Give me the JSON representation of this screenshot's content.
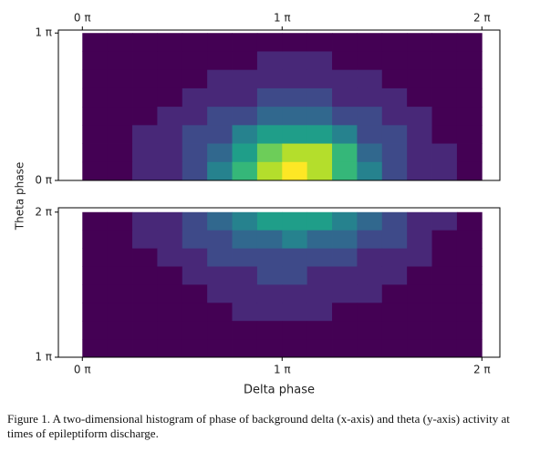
{
  "chart_data": [
    {
      "type": "hexbin",
      "colormap": "viridis",
      "xlim": [
        -0.12,
        2.09
      ],
      "ylim": [
        0,
        1.02
      ],
      "xticks": [
        {
          "value": 0,
          "label": "0 π"
        },
        {
          "value": 1,
          "label": "1 π"
        },
        {
          "value": 2,
          "label": "2 π"
        }
      ],
      "yticks": [
        {
          "value": 0,
          "label": "0 π"
        },
        {
          "value": 1,
          "label": "1 π"
        }
      ],
      "xtick_side": "top",
      "z": [
        [
          1,
          1,
          1,
          1,
          1,
          1,
          1,
          1,
          1,
          1,
          1,
          1,
          1,
          1,
          1,
          1
        ],
        [
          1,
          1,
          1,
          1,
          1,
          1,
          1,
          2,
          2,
          2,
          1,
          1,
          1,
          1,
          1,
          1
        ],
        [
          1,
          1,
          1,
          1,
          1,
          2,
          2,
          2,
          2,
          2,
          2,
          2,
          1,
          1,
          1,
          1
        ],
        [
          1,
          1,
          1,
          1,
          2,
          2,
          2,
          3,
          3,
          3,
          2,
          2,
          2,
          1,
          1,
          1
        ],
        [
          1,
          1,
          1,
          2,
          2,
          3,
          3,
          4,
          4,
          4,
          3,
          3,
          2,
          2,
          1,
          1
        ],
        [
          1,
          1,
          2,
          2,
          3,
          3,
          5,
          6,
          6,
          6,
          5,
          3,
          3,
          2,
          1,
          1
        ],
        [
          1,
          1,
          2,
          2,
          3,
          4,
          6,
          8,
          9,
          9,
          7,
          4,
          3,
          2,
          2,
          1
        ],
        [
          1,
          1,
          2,
          2,
          3,
          5,
          7,
          9,
          10,
          9,
          7,
          5,
          3,
          2,
          2,
          1
        ]
      ]
    },
    {
      "type": "hexbin",
      "colormap": "viridis",
      "xlim": [
        -0.12,
        2.09
      ],
      "ylim": [
        1,
        2.03
      ],
      "xticks": [
        {
          "value": 0,
          "label": "0 π"
        },
        {
          "value": 1,
          "label": "1 π"
        },
        {
          "value": 2,
          "label": "2 π"
        }
      ],
      "yticks": [
        {
          "value": 1,
          "label": "1 π"
        },
        {
          "value": 2,
          "label": "2 π"
        }
      ],
      "xtick_side": "bottom",
      "xlabel": "Delta phase",
      "z": [
        [
          1,
          1,
          2,
          2,
          3,
          4,
          5,
          6,
          6,
          6,
          5,
          4,
          3,
          2,
          2,
          1
        ],
        [
          1,
          1,
          2,
          2,
          3,
          3,
          4,
          4,
          5,
          4,
          4,
          3,
          3,
          2,
          1,
          1
        ],
        [
          1,
          1,
          1,
          2,
          2,
          3,
          3,
          3,
          3,
          3,
          3,
          2,
          2,
          2,
          1,
          1
        ],
        [
          1,
          1,
          1,
          1,
          2,
          2,
          2,
          3,
          3,
          2,
          2,
          2,
          2,
          1,
          1,
          1
        ],
        [
          1,
          1,
          1,
          1,
          1,
          2,
          2,
          2,
          2,
          2,
          2,
          2,
          1,
          1,
          1,
          1
        ],
        [
          1,
          1,
          1,
          1,
          1,
          1,
          2,
          2,
          2,
          2,
          1,
          1,
          1,
          1,
          1,
          1
        ],
        [
          1,
          1,
          1,
          1,
          1,
          1,
          1,
          1,
          1,
          1,
          1,
          1,
          1,
          1,
          1,
          1
        ],
        [
          1,
          1,
          1,
          1,
          1,
          1,
          1,
          1,
          1,
          1,
          1,
          1,
          1,
          1,
          1,
          1
        ]
      ]
    }
  ],
  "ylabel": "Theta phase",
  "caption": "Figure 1. A two-dimensional histogram of phase of background delta (x-axis) and theta (y-axis) activity at times of epileptiform discharge."
}
